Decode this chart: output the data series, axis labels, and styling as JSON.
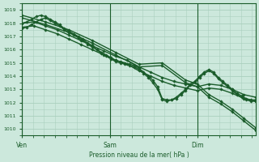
{
  "xlabel": "Pression niveau de la mer( hPa )",
  "background_color": "#cce8dc",
  "plot_bg_color": "#cce8dc",
  "grid_color": "#aacfbe",
  "line_color": "#1a5c2a",
  "tick_label_color": "#1a5c2a",
  "axis_color": "#1a5c2a",
  "ylim": [
    1009.5,
    1019.5
  ],
  "xlim": [
    0.0,
    1.0
  ],
  "yticks": [
    1010,
    1011,
    1012,
    1013,
    1014,
    1015,
    1016,
    1017,
    1018,
    1019
  ],
  "xtick_positions": [
    0.0,
    0.375,
    0.75
  ],
  "xtick_labels": [
    "Ven",
    "Sam",
    "Dim"
  ],
  "series": [
    {
      "x": [
        0.0,
        0.02,
        0.04,
        0.06,
        0.08,
        0.1,
        0.12,
        0.14,
        0.16,
        0.18,
        0.2,
        0.22,
        0.24,
        0.26,
        0.28,
        0.3,
        0.32,
        0.34,
        0.36,
        0.38,
        0.4,
        0.42,
        0.44,
        0.46,
        0.48,
        0.5,
        0.52,
        0.54,
        0.56,
        0.58,
        0.6,
        0.62,
        0.64,
        0.66,
        0.68,
        0.7,
        0.72,
        0.74,
        0.76,
        0.78,
        0.8,
        0.82,
        0.84,
        0.86,
        0.88,
        0.9,
        0.92,
        0.94,
        0.96,
        0.98,
        1.0
      ],
      "y": [
        1018.0,
        1018.1,
        1018.3,
        1018.5,
        1018.6,
        1018.5,
        1018.3,
        1018.1,
        1017.9,
        1017.6,
        1017.4,
        1017.2,
        1017.0,
        1016.8,
        1016.5,
        1016.3,
        1016.0,
        1015.8,
        1015.6,
        1015.4,
        1015.2,
        1015.1,
        1015.0,
        1014.9,
        1014.8,
        1014.6,
        1014.3,
        1014.0,
        1013.7,
        1013.2,
        1012.3,
        1012.2,
        1012.2,
        1012.4,
        1012.7,
        1013.0,
        1013.4,
        1013.6,
        1014.0,
        1014.3,
        1014.5,
        1014.3,
        1013.9,
        1013.6,
        1013.3,
        1013.0,
        1012.7,
        1012.5,
        1012.3,
        1012.2,
        1012.2
      ],
      "marker": "D",
      "markersize": 1.8,
      "linewidth": 1.0
    },
    {
      "x": [
        0.0,
        0.02,
        0.04,
        0.06,
        0.08,
        0.1,
        0.12,
        0.14,
        0.16,
        0.18,
        0.2,
        0.22,
        0.24,
        0.26,
        0.28,
        0.3,
        0.32,
        0.34,
        0.36,
        0.38,
        0.4,
        0.42,
        0.44,
        0.46,
        0.48,
        0.5,
        0.52,
        0.54,
        0.56,
        0.58,
        0.6,
        0.62,
        0.64,
        0.66,
        0.68,
        0.7,
        0.72,
        0.74,
        0.76,
        0.78,
        0.8,
        0.82,
        0.84,
        0.86,
        0.88,
        0.9,
        0.92,
        0.94,
        0.96,
        0.98,
        1.0
      ],
      "y": [
        1017.6,
        1017.7,
        1017.9,
        1018.1,
        1018.3,
        1018.4,
        1018.2,
        1018.0,
        1017.8,
        1017.5,
        1017.3,
        1017.1,
        1016.9,
        1016.7,
        1016.4,
        1016.2,
        1016.0,
        1015.7,
        1015.5,
        1015.3,
        1015.1,
        1015.0,
        1014.9,
        1014.8,
        1014.7,
        1014.5,
        1014.2,
        1013.9,
        1013.5,
        1013.0,
        1012.2,
        1012.1,
        1012.2,
        1012.3,
        1012.6,
        1012.9,
        1013.3,
        1013.5,
        1013.9,
        1014.2,
        1014.4,
        1014.2,
        1013.8,
        1013.5,
        1013.2,
        1012.9,
        1012.6,
        1012.4,
        1012.2,
        1012.1,
        1012.1
      ],
      "marker": "D",
      "markersize": 1.8,
      "linewidth": 1.0
    },
    {
      "x": [
        0.0,
        0.05,
        0.1,
        0.15,
        0.2,
        0.25,
        0.3,
        0.35,
        0.4,
        0.45,
        0.5,
        0.55,
        0.6,
        0.65,
        0.7,
        0.75,
        0.8,
        0.85,
        0.9,
        0.95,
        1.0
      ],
      "y": [
        1018.0,
        1018.1,
        1017.8,
        1017.5,
        1017.1,
        1016.7,
        1016.3,
        1015.9,
        1015.5,
        1015.2,
        1014.7,
        1014.3,
        1013.9,
        1013.6,
        1013.4,
        1013.2,
        1013.4,
        1013.3,
        1013.0,
        1012.6,
        1012.4
      ],
      "marker": "D",
      "markersize": 1.8,
      "linewidth": 1.0
    },
    {
      "x": [
        0.0,
        0.05,
        0.1,
        0.15,
        0.2,
        0.25,
        0.3,
        0.35,
        0.4,
        0.45,
        0.5,
        0.55,
        0.6,
        0.65,
        0.7,
        0.75,
        0.8,
        0.85,
        0.9,
        0.95,
        1.0
      ],
      "y": [
        1017.7,
        1017.8,
        1017.5,
        1017.2,
        1016.8,
        1016.4,
        1016.0,
        1015.6,
        1015.2,
        1014.9,
        1014.4,
        1014.0,
        1013.6,
        1013.3,
        1013.1,
        1012.9,
        1013.1,
        1013.0,
        1012.7,
        1012.3,
        1012.1
      ],
      "marker": "D",
      "markersize": 1.8,
      "linewidth": 1.0
    },
    {
      "x": [
        0.0,
        0.1,
        0.2,
        0.3,
        0.4,
        0.5,
        0.6,
        0.7,
        0.75,
        0.8,
        0.85,
        0.9,
        0.95,
        1.0
      ],
      "y": [
        1018.4,
        1017.9,
        1017.3,
        1016.5,
        1015.6,
        1014.7,
        1014.8,
        1013.5,
        1013.2,
        1012.4,
        1011.9,
        1011.3,
        1010.6,
        1009.9
      ],
      "marker": "D",
      "markersize": 1.8,
      "linewidth": 1.0
    },
    {
      "x": [
        0.0,
        0.1,
        0.2,
        0.3,
        0.4,
        0.5,
        0.6,
        0.7,
        0.75,
        0.8,
        0.85,
        0.9,
        0.95,
        1.0
      ],
      "y": [
        1018.6,
        1018.1,
        1017.5,
        1016.7,
        1015.8,
        1014.9,
        1015.0,
        1013.7,
        1013.4,
        1012.6,
        1012.1,
        1011.5,
        1010.8,
        1010.1
      ],
      "marker": "D",
      "markersize": 1.8,
      "linewidth": 1.0
    }
  ]
}
